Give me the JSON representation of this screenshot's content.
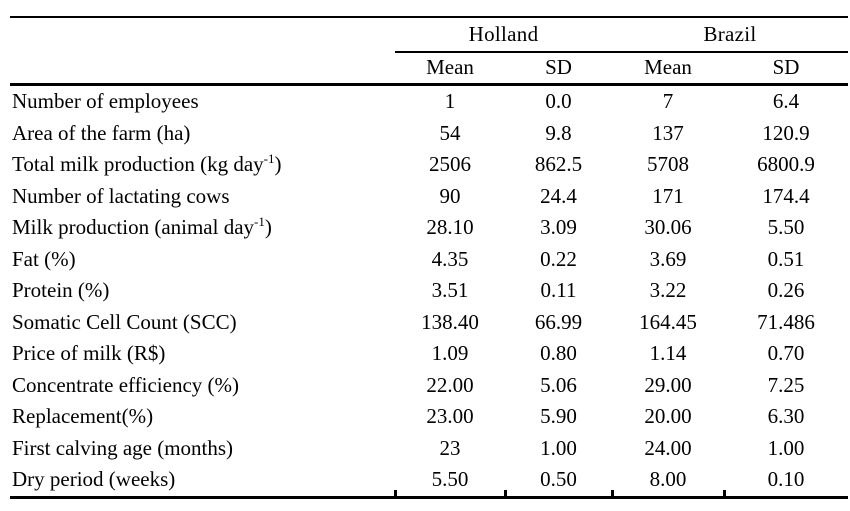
{
  "colors": {
    "text": "#000000",
    "rule": "#000000",
    "background": "#ffffff"
  },
  "table": {
    "col_groups": [
      {
        "label": "Holland",
        "subcols": [
          "Mean",
          "SD"
        ]
      },
      {
        "label": "Brazil",
        "subcols": [
          "Mean",
          "SD"
        ]
      }
    ],
    "subheaders": [
      "Mean",
      "SD",
      "Mean",
      "SD"
    ],
    "rows": [
      {
        "label": "Number of employees",
        "values": [
          "1",
          "0.0",
          "7",
          "6.4"
        ]
      },
      {
        "label": "Area of the farm (ha)",
        "values": [
          "54",
          "9.8",
          "137",
          "120.9"
        ]
      },
      {
        "label": "Total milk production (kg day",
        "label_sup": "-1",
        "label_tail": ")",
        "values": [
          "2506",
          "862.5",
          "5708",
          "6800.9"
        ]
      },
      {
        "label": "Number of lactating cows",
        "values": [
          "90",
          "24.4",
          "171",
          "174.4"
        ]
      },
      {
        "label": "Milk production (animal day",
        "label_sup": "-1",
        "label_tail": ")",
        "values": [
          "28.10",
          "3.09",
          "30.06",
          "5.50"
        ]
      },
      {
        "label": "Fat (%)",
        "values": [
          "4.35",
          "0.22",
          "3.69",
          "0.51"
        ]
      },
      {
        "label": "Protein (%)",
        "values": [
          "3.51",
          "0.11",
          "3.22",
          "0.26"
        ]
      },
      {
        "label": "Somatic Cell Count (SCC)",
        "values": [
          "138.40",
          "66.99",
          "164.45",
          "71.486"
        ]
      },
      {
        "label": "Price of milk (R$)",
        "values": [
          "1.09",
          "0.80",
          "1.14",
          "0.70"
        ]
      },
      {
        "label": "Concentrate efficiency (%)",
        "values": [
          "22.00",
          "5.06",
          "29.00",
          "7.25"
        ]
      },
      {
        "label": "Replacement(%)",
        "values": [
          "23.00",
          "5.90",
          "20.00",
          "6.30"
        ]
      },
      {
        "label": "First calving age (months)",
        "values": [
          "23",
          "1.00",
          "24.00",
          "1.00"
        ]
      },
      {
        "label": "Dry period (weeks)",
        "values": [
          "5.50",
          "0.50",
          "8.00",
          "0.10"
        ]
      }
    ]
  }
}
